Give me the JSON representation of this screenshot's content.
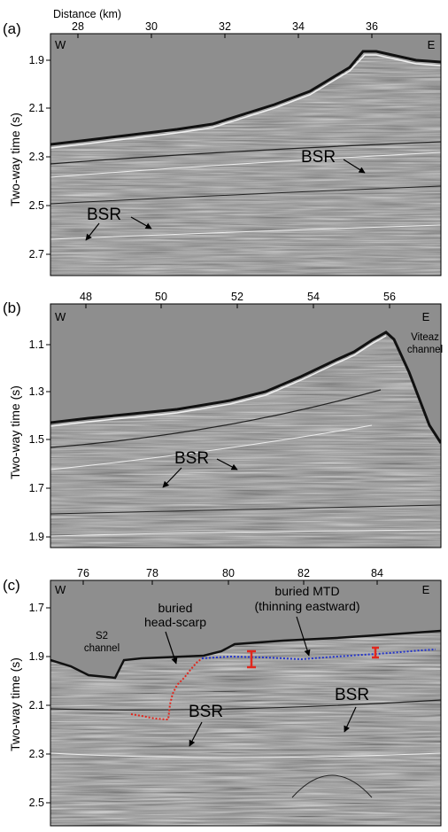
{
  "distance_label": "Distance (km)",
  "y_axis_label": "Two-way time (s)",
  "panels": [
    {
      "label": "(a)",
      "west": "W",
      "east": "E",
      "x_ticks": [
        "28",
        "30",
        "32",
        "34",
        "36"
      ],
      "y_ticks": [
        "1.9",
        "2.1",
        "2.3",
        "2.5",
        "2.7"
      ],
      "annotations": [
        "BSR",
        "BSR"
      ]
    },
    {
      "label": "(b)",
      "west": "W",
      "east": "E",
      "x_ticks": [
        "48",
        "50",
        "52",
        "54",
        "56"
      ],
      "y_ticks": [
        "1.1",
        "1.3",
        "1.5",
        "1.7",
        "1.9"
      ],
      "annotations": [
        "BSR",
        "Viteaz",
        "channel"
      ]
    },
    {
      "label": "(c)",
      "west": "W",
      "east": "E",
      "x_ticks": [
        "76",
        "78",
        "80",
        "82",
        "84"
      ],
      "y_ticks": [
        "1.7",
        "1.9",
        "2.1",
        "2.3",
        "2.5"
      ],
      "annotations": [
        "S2",
        "channel",
        "buried",
        "head-scarp",
        "buried MTD",
        "(thinning eastward)",
        "BSR",
        "BSR"
      ]
    }
  ],
  "colors": {
    "scarp_trace": "#e0281e",
    "mtd_trace": "#2233cc",
    "thickness_marker": "#e0281e"
  }
}
